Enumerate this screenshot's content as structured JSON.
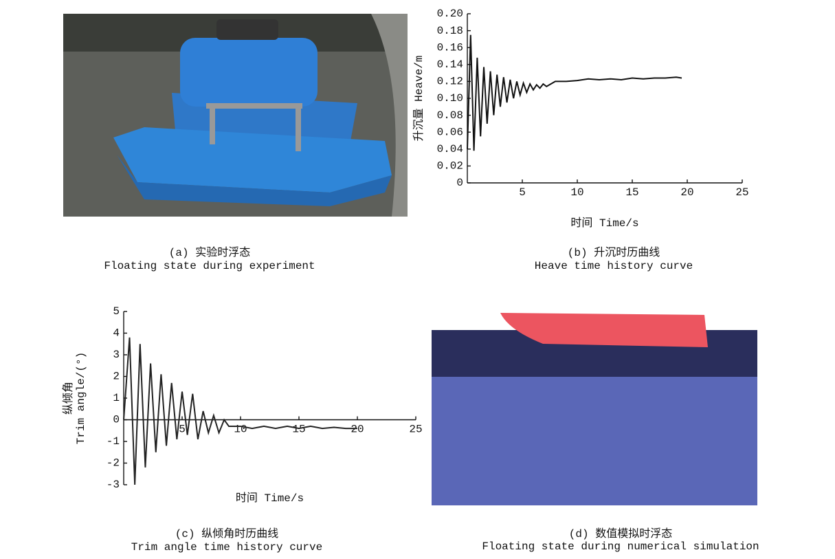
{
  "panels": {
    "a": {
      "caption": [
        "(a) 实验时浮态",
        "Floating state during experiment"
      ]
    },
    "d": {
      "caption": [
        "(d) 数值模拟时浮态",
        "Floating state during numerical simulation"
      ]
    }
  },
  "chart_data": [
    {
      "type": "line",
      "caption": [
        "(b) 升沉时历曲线",
        "Heave time history curve"
      ],
      "x_label": "时间 Time/s",
      "y_label": [
        "升沉量 Heave/m"
      ],
      "x": [
        0,
        0.3,
        0.6,
        0.9,
        1.2,
        1.5,
        1.8,
        2.1,
        2.4,
        2.7,
        3.0,
        3.3,
        3.6,
        3.9,
        4.2,
        4.5,
        4.8,
        5.1,
        5.4,
        5.7,
        6.0,
        6.3,
        6.6,
        6.9,
        7.2,
        8,
        9,
        10,
        11,
        12,
        13,
        14,
        15,
        16,
        17,
        18,
        19,
        19.5
      ],
      "values": [
        0.04,
        0.175,
        0.038,
        0.148,
        0.055,
        0.137,
        0.07,
        0.132,
        0.08,
        0.128,
        0.09,
        0.125,
        0.095,
        0.122,
        0.1,
        0.12,
        0.104,
        0.118,
        0.107,
        0.117,
        0.11,
        0.116,
        0.112,
        0.117,
        0.114,
        0.12,
        0.12,
        0.121,
        0.123,
        0.122,
        0.123,
        0.122,
        0.124,
        0.123,
        0.124,
        0.124,
        0.125,
        0.124
      ],
      "color": "#111111",
      "xlim": [
        0,
        25
      ],
      "xticks": [
        5,
        10,
        15,
        20,
        25
      ],
      "ylim": [
        0,
        0.2
      ],
      "yticks": [
        0,
        0.02,
        0.04,
        0.06,
        0.08,
        {
          "value": 0.1,
          "label": "0.10"
        },
        0.12,
        0.14,
        0.16,
        0.18,
        {
          "value": 0.2,
          "label": "0.20"
        }
      ]
    },
    {
      "type": "line",
      "caption": [
        "(c) 纵倾角时历曲线",
        "Trim angle time history curve"
      ],
      "x_label": "时间 Time/s",
      "y_label": [
        "纵倾角",
        "Trim angle/(°)"
      ],
      "x": [
        0,
        0.5,
        0.95,
        1.4,
        1.85,
        2.3,
        2.75,
        3.2,
        3.65,
        4.1,
        4.55,
        5.0,
        5.45,
        5.9,
        6.35,
        6.8,
        7.25,
        7.7,
        8.15,
        8.6,
        9,
        10,
        11,
        12,
        13,
        14,
        15,
        16,
        17,
        18,
        19,
        20
      ],
      "values": [
        0,
        3.8,
        -3,
        3.5,
        -2.2,
        2.6,
        -1.5,
        2.1,
        -1.2,
        1.7,
        -0.9,
        1.3,
        -0.7,
        1.2,
        -0.9,
        0.4,
        -0.6,
        0.2,
        -0.6,
        0,
        -0.3,
        -0.3,
        -0.4,
        -0.3,
        -0.4,
        -0.3,
        -0.4,
        -0.3,
        -0.4,
        -0.35,
        -0.4,
        -0.4
      ],
      "color": "#222222",
      "xlim": [
        0,
        25
      ],
      "xticks": [
        5,
        10,
        15,
        20,
        25
      ],
      "ylim": [
        -3,
        5
      ],
      "yticks": [
        -3,
        -2,
        -1,
        0,
        1,
        2,
        3,
        4,
        5
      ]
    }
  ]
}
